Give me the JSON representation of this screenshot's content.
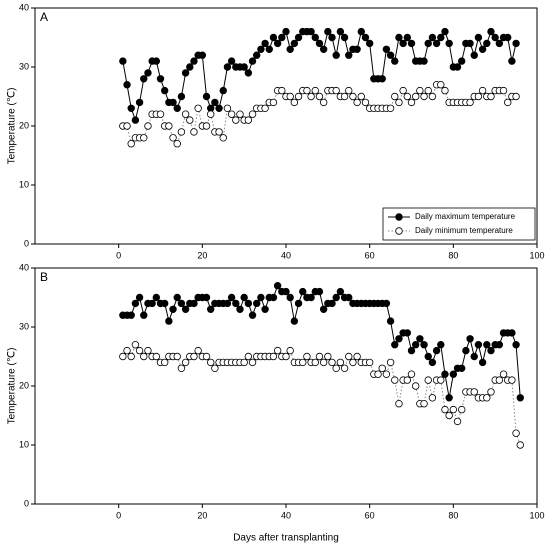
{
  "chart_data": [
    {
      "type": "line",
      "panel_label": "A",
      "ylabel": "Temperature (℃)",
      "legend": "lower right",
      "xlim": [
        -20,
        100
      ],
      "xticks": [
        0,
        20,
        40,
        60,
        80,
        100
      ],
      "ylim": [
        0,
        40
      ],
      "yticks": [
        0,
        10,
        20,
        30,
        40
      ],
      "x": [
        1,
        2,
        3,
        4,
        5,
        6,
        7,
        8,
        9,
        10,
        11,
        12,
        13,
        14,
        15,
        16,
        17,
        18,
        19,
        20,
        21,
        22,
        23,
        24,
        25,
        26,
        27,
        28,
        29,
        30,
        31,
        32,
        33,
        34,
        35,
        36,
        37,
        38,
        39,
        40,
        41,
        42,
        43,
        44,
        45,
        46,
        47,
        48,
        49,
        50,
        51,
        52,
        53,
        54,
        55,
        56,
        57,
        58,
        59,
        60,
        61,
        62,
        63,
        64,
        65,
        66,
        67,
        68,
        69,
        70,
        71,
        72,
        73,
        74,
        75,
        76,
        77,
        78,
        79,
        80,
        81,
        82,
        83,
        84,
        85,
        86,
        87,
        88,
        89,
        90,
        91,
        92,
        93,
        94,
        95
      ],
      "series": [
        {
          "name": "Daily maximum temperature",
          "color": "#000000",
          "marker": "filled",
          "line": "solid",
          "values": [
            31,
            27,
            23,
            21,
            24,
            28,
            29,
            31,
            31,
            28,
            26,
            24,
            24,
            23,
            25,
            29,
            30,
            31,
            32,
            32,
            25,
            23,
            24,
            23,
            26,
            30,
            31,
            30,
            30,
            30,
            29,
            31,
            32,
            33,
            34,
            33,
            35,
            34,
            35,
            36,
            33,
            34,
            35,
            36,
            36,
            36,
            35,
            34,
            33,
            36,
            35,
            32,
            36,
            35,
            32,
            33,
            33,
            36,
            35,
            34,
            28,
            28,
            28,
            33,
            32,
            31,
            35,
            34,
            35,
            34,
            31,
            31,
            31,
            34,
            35,
            34,
            35,
            36,
            34,
            30,
            30,
            31,
            34,
            34,
            32,
            35,
            33,
            34,
            36,
            35,
            34,
            35,
            35,
            31,
            34
          ]
        },
        {
          "name": "Daily minimum temperature",
          "color": "#000000",
          "marker": "open",
          "line": "dotted",
          "values": [
            20,
            20,
            17,
            18,
            18,
            18,
            20,
            22,
            22,
            22,
            20,
            20,
            18,
            17,
            19,
            22,
            21,
            19,
            23,
            20,
            20,
            22,
            19,
            19,
            18,
            23,
            22,
            21,
            22,
            21,
            21,
            22,
            23,
            23,
            23,
            24,
            24,
            26,
            26,
            25,
            25,
            24,
            25,
            26,
            26,
            25,
            26,
            25,
            24,
            26,
            26,
            26,
            25,
            25,
            26,
            25,
            24,
            25,
            24,
            23,
            23,
            23,
            23,
            23,
            23,
            25,
            24,
            26,
            25,
            24,
            25,
            26,
            25,
            26,
            25,
            27,
            27,
            26,
            24,
            24,
            24,
            24,
            24,
            24,
            25,
            25,
            26,
            25,
            25,
            26,
            26,
            26,
            24,
            25,
            25
          ]
        }
      ]
    },
    {
      "type": "line",
      "panel_label": "B",
      "ylabel": "Temperature (℃)",
      "xlabel": "Days after transplanting",
      "xlim": [
        -20,
        100
      ],
      "xticks": [
        0,
        20,
        40,
        60,
        80,
        100
      ],
      "ylim": [
        0,
        40
      ],
      "yticks": [
        0,
        10,
        20,
        30,
        40
      ],
      "x": [
        1,
        2,
        3,
        4,
        5,
        6,
        7,
        8,
        9,
        10,
        11,
        12,
        13,
        14,
        15,
        16,
        17,
        18,
        19,
        20,
        21,
        22,
        23,
        24,
        25,
        26,
        27,
        28,
        29,
        30,
        31,
        32,
        33,
        34,
        35,
        36,
        37,
        38,
        39,
        40,
        41,
        42,
        43,
        44,
        45,
        46,
        47,
        48,
        49,
        50,
        51,
        52,
        53,
        54,
        55,
        56,
        57,
        58,
        59,
        60,
        61,
        62,
        63,
        64,
        65,
        66,
        67,
        68,
        69,
        70,
        71,
        72,
        73,
        74,
        75,
        76,
        77,
        78,
        79,
        80,
        81,
        82,
        83,
        84,
        85,
        86,
        87,
        88,
        89,
        90,
        91,
        92,
        93,
        94,
        95,
        96
      ],
      "series": [
        {
          "color": "#000000",
          "marker": "filled",
          "line": "solid",
          "values": [
            32,
            32,
            32,
            34,
            35,
            32,
            34,
            34,
            35,
            34,
            34,
            31,
            33,
            35,
            34,
            33,
            34,
            34,
            35,
            35,
            35,
            33,
            34,
            34,
            34,
            34,
            35,
            34,
            33,
            35,
            34,
            32,
            34,
            35,
            33,
            35,
            35,
            37,
            36,
            36,
            35,
            31,
            34,
            36,
            35,
            35,
            36,
            36,
            33,
            34,
            34,
            35,
            36,
            35,
            35,
            34,
            34,
            34,
            34,
            34,
            34,
            34,
            34,
            34,
            31,
            27,
            28,
            29,
            29,
            26,
            27,
            28,
            27,
            25,
            24,
            26,
            27,
            22,
            18,
            22,
            23,
            23,
            26,
            28,
            25,
            27,
            24,
            27,
            26,
            27,
            27,
            29,
            29,
            29,
            27,
            18
          ]
        },
        {
          "color": "#000000",
          "marker": "open",
          "line": "dotted",
          "values": [
            25,
            26,
            25,
            27,
            26,
            25,
            26,
            25,
            25,
            24,
            24,
            25,
            25,
            25,
            23,
            24,
            25,
            25,
            26,
            25,
            25,
            24,
            23,
            24,
            24,
            24,
            24,
            24,
            24,
            24,
            25,
            24,
            25,
            25,
            25,
            25,
            25,
            26,
            25,
            25,
            26,
            24,
            24,
            24,
            25,
            24,
            24,
            25,
            24,
            25,
            24,
            23,
            24,
            23,
            25,
            24,
            25,
            24,
            24,
            24,
            22,
            22,
            23,
            22,
            24,
            21,
            17,
            21,
            21,
            22,
            20,
            17,
            17,
            21,
            18,
            21,
            21,
            16,
            15,
            16,
            14,
            16,
            19,
            19,
            19,
            18,
            18,
            18,
            19,
            21,
            21,
            22,
            21,
            21,
            12,
            10
          ]
        }
      ]
    }
  ]
}
